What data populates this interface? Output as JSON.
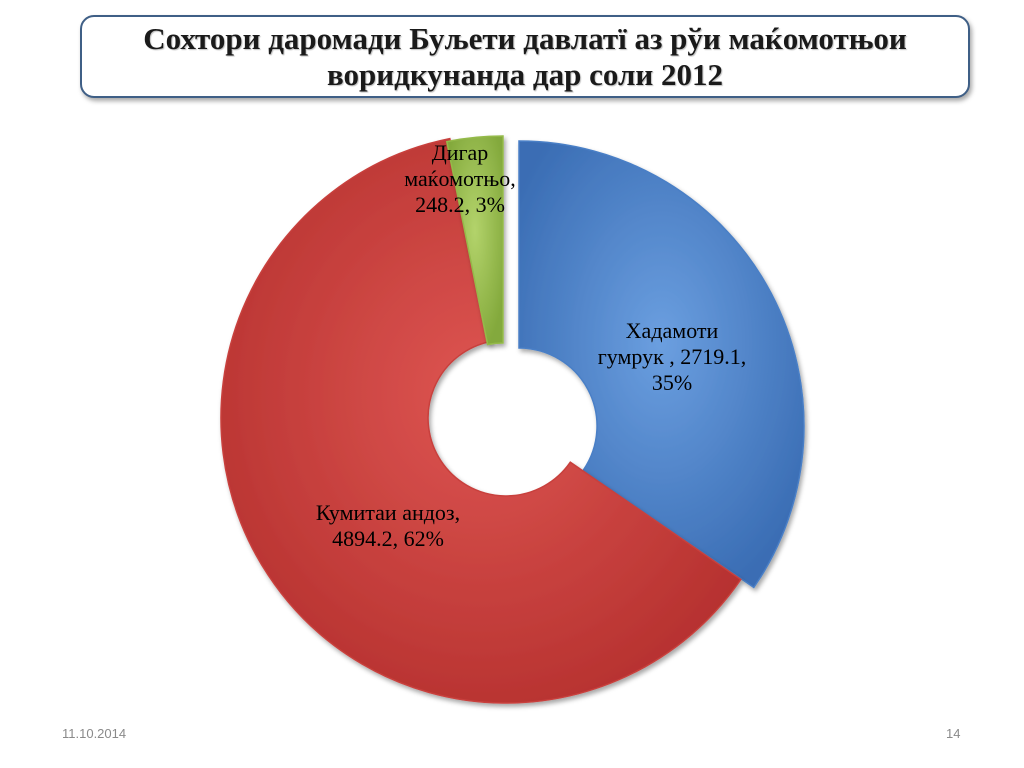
{
  "slide": {
    "title_line1": "Сохтори даромади Буљети давлатї аз рўи маќомотњои",
    "title_line2": "воридкунанда дар соли 2012",
    "date": "11.10.2014",
    "page_number": "14"
  },
  "chart_data": {
    "type": "pie",
    "donut": true,
    "exploded": true,
    "slices": [
      {
        "label": "Хадамоти гумрук",
        "value": 2719.1,
        "percent": 35,
        "color": "#4a7fc6",
        "label_lines": [
          "Хадамоти",
          "гумрук , 2719.1,",
          "35%"
        ]
      },
      {
        "label": "Кумитаи андоз",
        "value": 4894.2,
        "percent": 62,
        "color": "#c8403d",
        "label_lines": [
          "Кумитаи андоз,",
          "4894.2, 62%"
        ]
      },
      {
        "label": "Дигар маќомотњо",
        "value": 248.2,
        "percent": 3,
        "color": "#94ba4a",
        "label_lines": [
          "Дигар",
          "маќомотњо,",
          "248.2, 3%"
        ]
      }
    ]
  }
}
